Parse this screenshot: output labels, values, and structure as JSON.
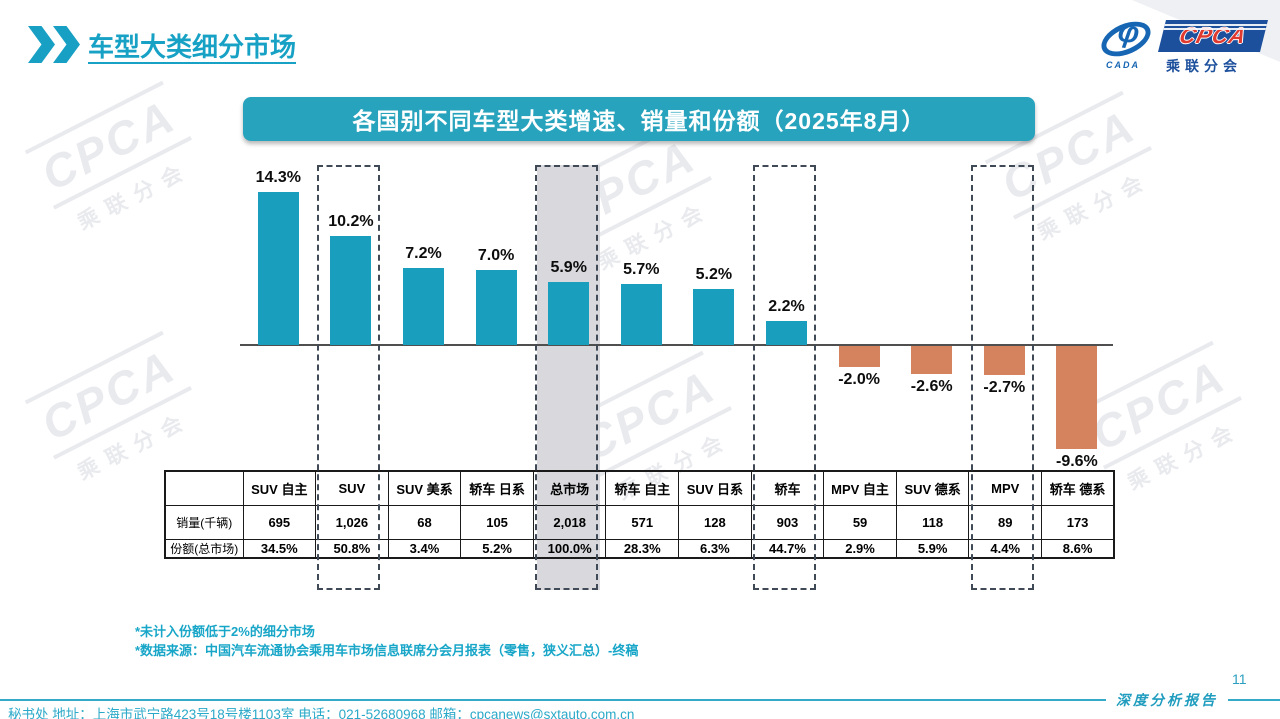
{
  "header": {
    "title": "车型大类细分市场"
  },
  "logo": {
    "cpca": "CPCA",
    "sub": "乘联分会",
    "cada": "CADA"
  },
  "banner": {
    "title": "各国别不同车型大类增速、销量和份额（2025年8月）"
  },
  "chart_data": {
    "type": "bar",
    "title": "各国别不同车型大类增速、销量和份额（2025年8月）",
    "categories": [
      "SUV 自主",
      "SUV",
      "SUV 美系",
      "轿车 日系",
      "总市场",
      "轿车 自主",
      "SUV 日系",
      "轿车",
      "MPV 自主",
      "SUV 德系",
      "MPV",
      "轿车 德系"
    ],
    "series": [
      {
        "name": "增速",
        "values": [
          14.3,
          10.2,
          7.2,
          7.0,
          5.9,
          5.7,
          5.2,
          2.2,
          -2.0,
          -2.6,
          -2.7,
          -9.6
        ],
        "labels": [
          "14.3%",
          "10.2%",
          "7.2%",
          "7.0%",
          "5.9%",
          "5.7%",
          "5.2%",
          "2.2%",
          "-2.0%",
          "-2.6%",
          "-2.7%",
          "-9.6%"
        ]
      },
      {
        "name": "销量(千辆)",
        "values": [
          "695",
          "1,026",
          "68",
          "105",
          "2,018",
          "571",
          "128",
          "903",
          "59",
          "118",
          "89",
          "173"
        ]
      },
      {
        "name": "份额(总市场)",
        "values": [
          "34.5%",
          "50.8%",
          "3.4%",
          "5.2%",
          "100.0%",
          "28.3%",
          "6.3%",
          "44.7%",
          "2.9%",
          "5.9%",
          "4.4%",
          "8.6%"
        ]
      }
    ],
    "highlighted_columns": [
      1,
      4,
      7,
      10
    ],
    "shaded_column": 4,
    "positive_color": "#199FBD",
    "negative_color": "#D5825F",
    "legend": "none",
    "grid": false,
    "ylim": [
      -10,
      15
    ]
  },
  "table": {
    "row_labels": [
      "销量(千辆)",
      "份额(总市场)"
    ]
  },
  "footnotes": [
    "*未计入份额低于2%的细分市场",
    "*数据来源：中国汽车流通协会乘用车市场信息联席分会月报表（零售，狭义汇总）-终稿"
  ],
  "footer": {
    "contact": "秘书处  地址：上海市武宁路423号18号楼1103室 电话：021-52680968  邮箱：cpcanews@sxtauto.com.cn",
    "page": "11",
    "report_label": "深度分析报告"
  },
  "watermark": {
    "text": "CPCA",
    "sub": "乘联分会"
  }
}
